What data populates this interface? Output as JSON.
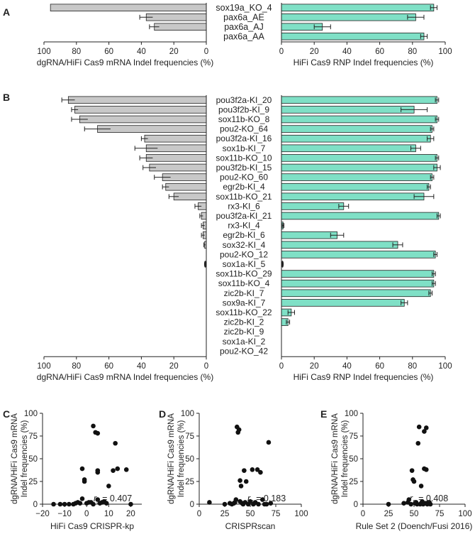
{
  "chart_data": [
    {
      "panel": "A",
      "type": "bar",
      "categories": [
        "sox19a_KO_4",
        "pax6a_AE",
        "pax6a_AJ",
        "pax6a_AA"
      ],
      "left": {
        "xlabel": "dgRNA/HiFi Cas9 mRNA Indel frequencies (%)",
        "xlim": [
          100,
          0
        ],
        "ticks": [
          100,
          80,
          60,
          40,
          20,
          0
        ],
        "values": [
          96,
          37,
          32,
          0
        ],
        "errors": [
          0,
          4,
          3,
          0
        ],
        "color": "#c8c8c8"
      },
      "right": {
        "xlabel": "HiFi Cas9 RNP Indel frequencies (%)",
        "xlim": [
          0,
          100
        ],
        "ticks": [
          0,
          20,
          40,
          60,
          80,
          100
        ],
        "values": [
          93,
          82,
          25,
          87
        ],
        "errors": [
          2,
          5,
          5,
          2
        ],
        "color": "#7fe0c6"
      }
    },
    {
      "panel": "B",
      "type": "bar",
      "categories": [
        "pou3f2a-KI_20",
        "pou3f2b-KI_9",
        "sox11b-KO_8",
        "pou2-KO_64",
        "pou3f2a-KI_16",
        "sox1b-KI_7",
        "sox11b-KO_10",
        "pou3f2b-KI_15",
        "pou2-KO_60",
        "egr2b-KI_4",
        "sox11b-KO_21",
        "rx3-KI_6",
        "pou3f2a-KI_21",
        "rx3-KI_4",
        "egr2b-KI_6",
        "sox32-KI_4",
        "pou2-KO_12",
        "sox1a-KI_5",
        "sox11b-KO_29",
        "sox11b-KO_4",
        "zic2b-KI_7",
        "sox9a-KI_7",
        "sox11b-KO_22",
        "zic2b-KI_2",
        "zic2b-KI_9",
        "sox1a-KI_2",
        "pou2-KO_42"
      ],
      "left": {
        "xlabel": "dgRNA/HiFi Cas9 mRNA Indel frequencies (%)",
        "xlim": [
          100,
          0
        ],
        "ticks": [
          100,
          80,
          60,
          40,
          20,
          0
        ],
        "values": [
          85,
          81,
          78,
          67,
          38,
          37,
          37,
          35,
          27,
          25,
          20,
          5,
          3,
          2,
          2,
          1,
          0,
          0,
          0,
          0,
          0,
          0,
          0,
          0,
          0,
          0,
          0
        ],
        "errors": [
          4,
          2,
          5,
          8,
          2,
          7,
          4,
          4,
          5,
          2,
          3,
          2,
          1,
          1,
          1,
          0.5,
          0,
          0.5,
          0,
          0,
          0,
          0,
          0,
          0,
          0,
          0,
          0
        ],
        "color": "#c8c8c8"
      },
      "right": {
        "xlabel": "HiFi Cas9 RNP Indel frequencies (%)",
        "xlim": [
          0,
          100
        ],
        "ticks": [
          0,
          20,
          40,
          60,
          80,
          100
        ],
        "values": [
          95,
          81,
          95,
          92,
          91,
          82,
          95,
          95,
          92,
          90,
          87,
          38,
          96,
          1,
          34,
          71,
          94,
          0,
          93,
          93,
          91,
          75,
          6,
          4,
          0,
          0,
          0
        ],
        "errors": [
          1,
          8,
          1,
          1,
          2,
          3,
          1,
          2,
          1,
          1,
          6,
          3,
          1,
          0.5,
          4,
          3,
          1,
          0.5,
          1,
          1,
          1,
          2,
          2,
          1,
          0,
          0,
          0
        ],
        "color": "#7fe0c6"
      }
    },
    {
      "panel": "C",
      "type": "scatter",
      "xlabel": "HiFi Cas9 CRISPR-kp",
      "ylabel": "dgRNA/HiFi Cas9 mRNA\nIndel frequencies (%)",
      "xlim": [
        -20,
        25
      ],
      "ylim": [
        0,
        100
      ],
      "xticks": [
        -20,
        -10,
        0,
        10,
        20
      ],
      "yticks": [
        0,
        25,
        50,
        75,
        100
      ],
      "annotation": {
        "symbol": "r",
        "subscript": "s",
        "text": " = 0.407"
      },
      "points": [
        [
          -15,
          0
        ],
        [
          -12,
          0
        ],
        [
          -10,
          0
        ],
        [
          -8,
          0
        ],
        [
          -6,
          0
        ],
        [
          -5,
          1
        ],
        [
          -4,
          2
        ],
        [
          -3,
          1
        ],
        [
          -2,
          6
        ],
        [
          -2,
          39
        ],
        [
          -1,
          25
        ],
        [
          -1,
          27
        ],
        [
          0,
          1
        ],
        [
          1,
          2
        ],
        [
          2,
          2
        ],
        [
          3,
          0
        ],
        [
          3,
          86
        ],
        [
          4,
          79
        ],
        [
          5,
          5
        ],
        [
          5,
          78
        ],
        [
          5,
          35
        ],
        [
          5,
          37
        ],
        [
          6,
          1
        ],
        [
          7,
          2
        ],
        [
          8,
          3
        ],
        [
          9,
          1
        ],
        [
          10,
          20
        ],
        [
          12,
          37
        ],
        [
          13,
          67
        ],
        [
          14,
          39
        ],
        [
          18,
          38
        ],
        [
          20,
          0
        ]
      ]
    },
    {
      "panel": "D",
      "type": "scatter",
      "xlabel": "CRISPRscan",
      "ylabel": "dgRNA/HiFi Cas9 mRNA\nIndel frequencies (%)",
      "xlim": [
        0,
        100
      ],
      "ylim": [
        0,
        100
      ],
      "xticks": [
        0,
        25,
        50,
        75,
        100
      ],
      "yticks": [
        0,
        25,
        50,
        75,
        100
      ],
      "annotation": {
        "symbol": "r",
        "subscript": "s",
        "text": " = 0.183"
      },
      "points": [
        [
          10,
          2
        ],
        [
          25,
          0
        ],
        [
          30,
          1
        ],
        [
          32,
          0
        ],
        [
          34,
          1
        ],
        [
          35,
          2
        ],
        [
          36,
          5
        ],
        [
          37,
          85
        ],
        [
          38,
          79
        ],
        [
          39,
          82
        ],
        [
          40,
          3
        ],
        [
          40,
          26
        ],
        [
          41,
          20
        ],
        [
          42,
          1
        ],
        [
          43,
          0
        ],
        [
          44,
          37
        ],
        [
          45,
          2
        ],
        [
          46,
          25
        ],
        [
          48,
          0
        ],
        [
          50,
          3
        ],
        [
          52,
          38
        ],
        [
          53,
          0
        ],
        [
          54,
          1
        ],
        [
          55,
          2
        ],
        [
          57,
          38
        ],
        [
          58,
          0
        ],
        [
          60,
          35
        ],
        [
          62,
          5
        ],
        [
          64,
          0
        ],
        [
          66,
          0
        ],
        [
          68,
          68
        ],
        [
          70,
          1
        ]
      ]
    },
    {
      "panel": "E",
      "type": "scatter",
      "xlabel": "Rule Set 2 (Doench/Fusi 2016)",
      "ylabel": "dgRNA/HiFi Cas9 mRNA\nIndel frequencies (%)",
      "xlim": [
        0,
        100
      ],
      "ylim": [
        0,
        100
      ],
      "xticks": [
        0,
        25,
        50,
        75,
        100
      ],
      "yticks": [
        0,
        25,
        50,
        75,
        100
      ],
      "annotation": {
        "symbol": "r",
        "subscript": "s",
        "text": " = 0.408"
      },
      "points": [
        [
          25,
          0
        ],
        [
          40,
          1
        ],
        [
          44,
          2
        ],
        [
          45,
          5
        ],
        [
          47,
          0
        ],
        [
          48,
          37
        ],
        [
          49,
          27
        ],
        [
          50,
          25
        ],
        [
          51,
          1
        ],
        [
          52,
          2
        ],
        [
          53,
          0
        ],
        [
          54,
          67
        ],
        [
          55,
          85
        ],
        [
          56,
          0
        ],
        [
          57,
          1
        ],
        [
          57,
          20
        ],
        [
          58,
          3
        ],
        [
          59,
          0
        ],
        [
          60,
          39
        ],
        [
          60,
          80
        ],
        [
          61,
          1
        ],
        [
          62,
          84
        ],
        [
          62,
          38
        ],
        [
          63,
          0
        ],
        [
          64,
          2
        ],
        [
          65,
          2
        ],
        [
          66,
          0
        ]
      ]
    }
  ]
}
